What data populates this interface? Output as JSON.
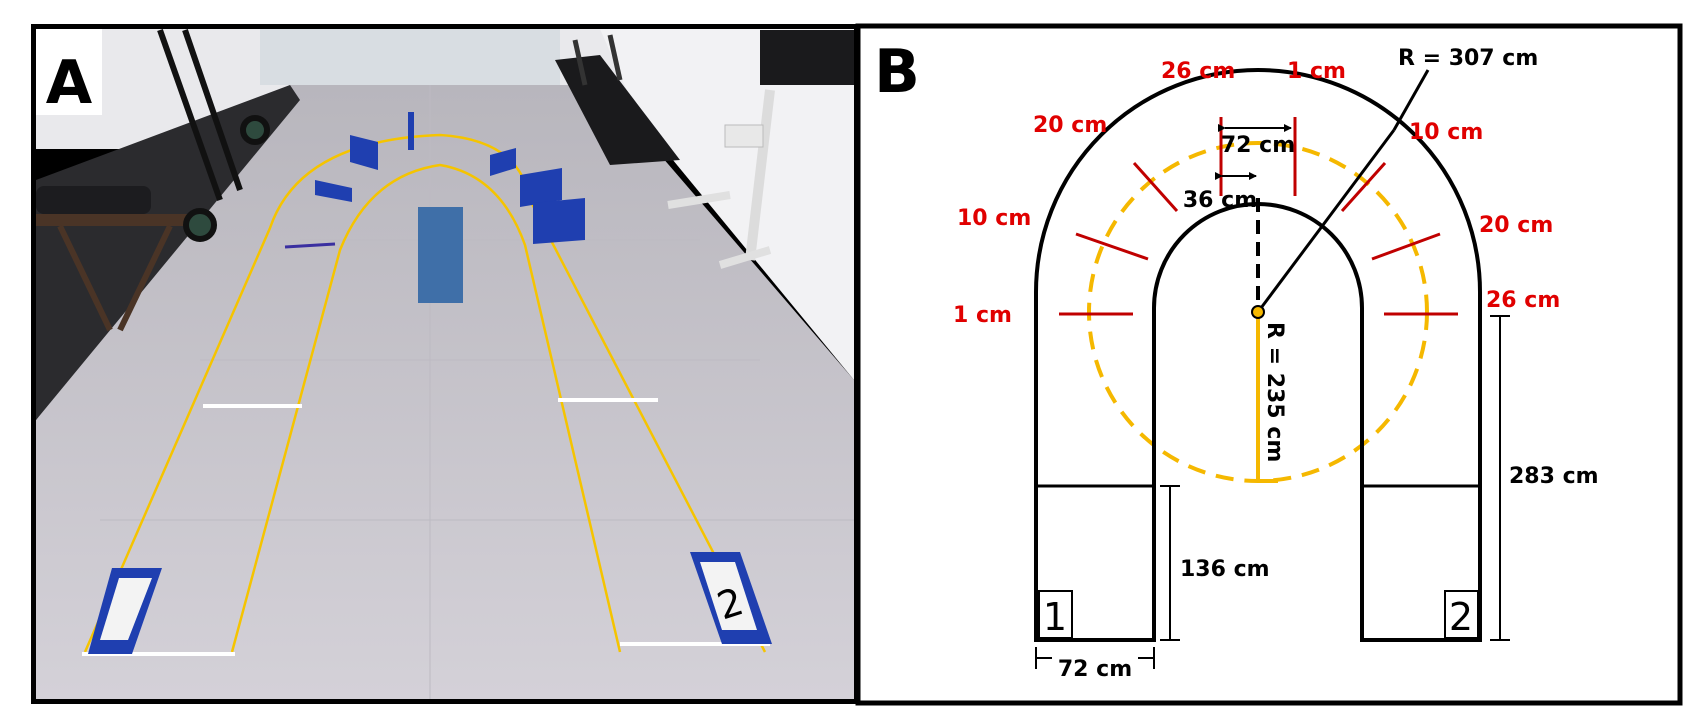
{
  "panel_a": {
    "label": "A",
    "marker_1": "1",
    "marker_2": "2"
  },
  "panel_b": {
    "label": "B",
    "outer_radius": "R = 307 cm",
    "inner_radius": "R = 235 cm",
    "lane_width_top": "72 cm",
    "half_width": "36 cm",
    "lane_width_bottom": "72 cm",
    "start_zone_length": "136 cm",
    "straight_length": "283 cm",
    "box_1": "1",
    "box_2": "2",
    "offsets_left": [
      "1 cm",
      "10 cm",
      "20 cm",
      "26 cm"
    ],
    "offsets_right": [
      "1 cm",
      "10 cm",
      "20 cm",
      "26 cm"
    ]
  },
  "colors": {
    "tape_yellow": "#f5b800",
    "offset_red": "#c00000",
    "label_red": "#e00000",
    "obstacle_blue": "#1f3fb0",
    "floor": "#c9c6cf"
  }
}
